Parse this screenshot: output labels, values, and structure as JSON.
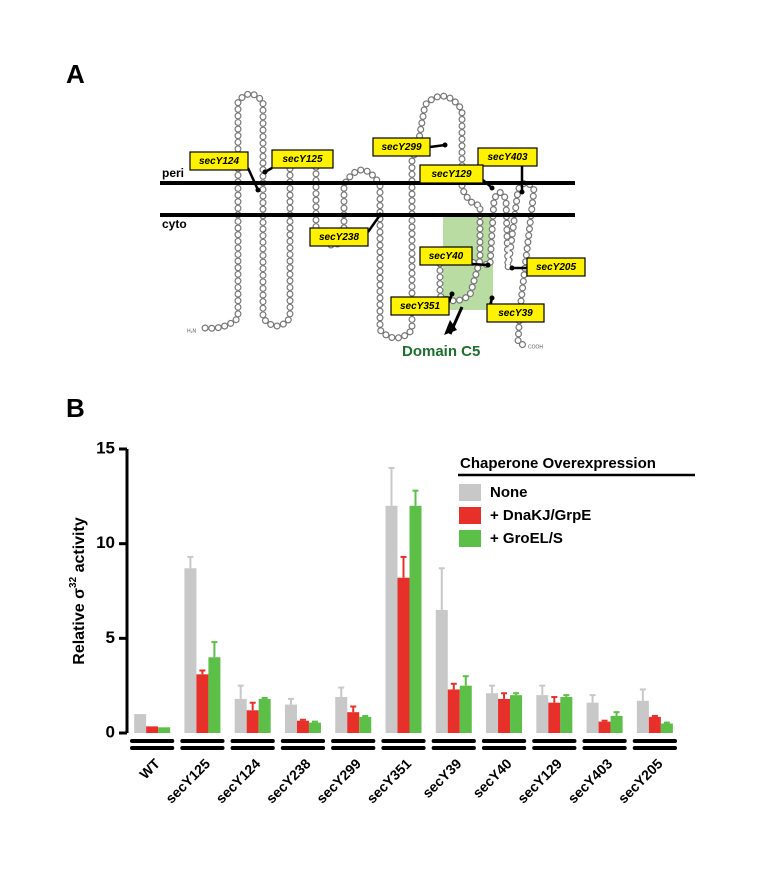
{
  "panel_a": {
    "label": "A",
    "membrane_labels": [
      "peri",
      "cyto"
    ],
    "mutations": [
      "secY124",
      "secY125",
      "secY299",
      "secY403",
      "secY129",
      "secY238",
      "secY40",
      "secY205",
      "secY351",
      "secY39"
    ],
    "termini": [
      "H₂N",
      "COOH"
    ],
    "domain": "Domain C5"
  },
  "chart_data": {
    "type": "bar",
    "panel_label": "B",
    "y_label": {
      "text": "Relative σ",
      "superscript": "32",
      "suffix": " activity"
    },
    "legend_title": "Chaperone Overexpression",
    "categories": [
      "WT",
      "secY125",
      "secY124",
      "secY238",
      "secY299",
      "secY351",
      "secY39",
      "secY40",
      "secY129",
      "secY403",
      "secY205"
    ],
    "series": [
      {
        "name": "None",
        "color": "#c8c8c8",
        "values": [
          1.0,
          8.7,
          1.8,
          1.5,
          1.9,
          12.0,
          6.5,
          2.1,
          2.0,
          1.6,
          1.7
        ],
        "errors": [
          0,
          0.6,
          0.7,
          0.3,
          0.5,
          2.0,
          2.2,
          0.4,
          0.5,
          0.4,
          0.6
        ]
      },
      {
        "name": "+ DnaKJ/GrpE",
        "color": "#e8302a",
        "values": [
          0.35,
          3.1,
          1.2,
          0.65,
          1.1,
          8.2,
          2.3,
          1.8,
          1.6,
          0.6,
          0.85
        ],
        "errors": [
          0,
          0.2,
          0.4,
          0.05,
          0.3,
          1.1,
          0.3,
          0.3,
          0.3,
          0.05,
          0.05
        ]
      },
      {
        "name": "+ GroEL/S",
        "color": "#5cbf47",
        "values": [
          0.3,
          4.0,
          1.8,
          0.55,
          0.85,
          12.0,
          2.5,
          2.0,
          1.9,
          0.9,
          0.5
        ],
        "errors": [
          0,
          0.8,
          0.05,
          0.05,
          0.05,
          0.8,
          0.5,
          0.1,
          0.1,
          0.2,
          0.05
        ]
      }
    ],
    "ylim": [
      0,
      15
    ],
    "yticks": [
      0,
      5,
      10,
      15
    ]
  }
}
